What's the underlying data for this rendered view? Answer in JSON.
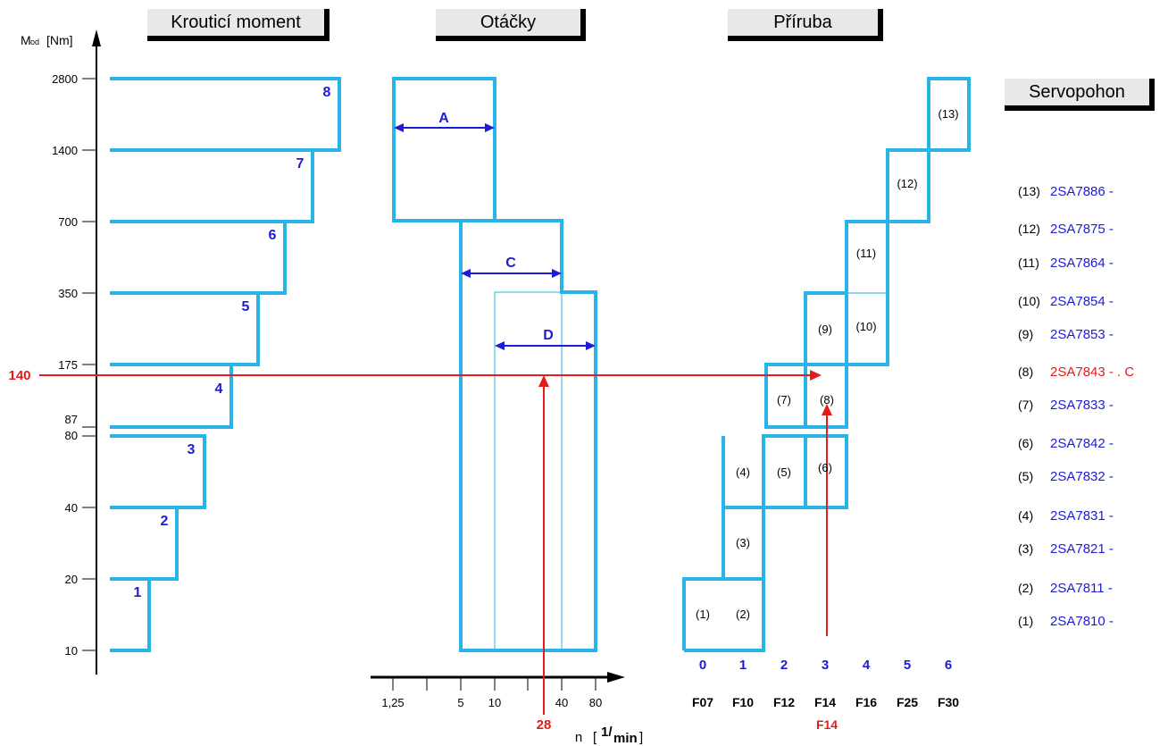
{
  "headers": {
    "torque": "Krouticí moment",
    "speed": "Otáčky",
    "flange": "Příruba",
    "servo": "Servopohon"
  },
  "axis": {
    "y_label": "M",
    "y_sub": "od",
    "y_unit": "[Nm]",
    "y_ticks": [
      "10",
      "20",
      "40",
      "80",
      "87",
      "175",
      "350",
      "700",
      "1400",
      "2800"
    ],
    "x_label": "n",
    "x_unit_num": "1",
    "x_unit_den": "min",
    "x_ticks": [
      "1,25",
      "5",
      "10",
      "40",
      "80"
    ]
  },
  "torque_steps": [
    "1",
    "2",
    "3",
    "4",
    "5",
    "6",
    "7",
    "8"
  ],
  "speed_regions": [
    "A",
    "C",
    "D"
  ],
  "flange_cells": [
    "(1)",
    "(2)",
    "(3)",
    "(4)",
    "(5)",
    "(6)",
    "(7)",
    "(8)",
    "(9)",
    "(10)",
    "(11)",
    "(12)",
    "(13)"
  ],
  "flange_sizes": [
    "0",
    "1",
    "2",
    "3",
    "4",
    "5",
    "6"
  ],
  "flange_codes": [
    "F07",
    "F10",
    "F12",
    "F14",
    "F16",
    "F25",
    "F30"
  ],
  "example": {
    "torque": "140",
    "speed": "28",
    "flange": "F14"
  },
  "servo_list": [
    {
      "num": "(13)",
      "code": "2SA7886 -"
    },
    {
      "num": "(12)",
      "code": "2SA7875 -"
    },
    {
      "num": "(11)",
      "code": "2SA7864 -"
    },
    {
      "num": "(10)",
      "code": "2SA7854 -"
    },
    {
      "num": "(9)",
      "code": "2SA7853 -"
    },
    {
      "num": "(8)",
      "code": "2SA7843 - . C"
    },
    {
      "num": "(7)",
      "code": "2SA7833 -"
    },
    {
      "num": "(6)",
      "code": "2SA7842 -"
    },
    {
      "num": "(5)",
      "code": "2SA7832 -"
    },
    {
      "num": "(4)",
      "code": "2SA7831 -"
    },
    {
      "num": "(3)",
      "code": "2SA7821 -"
    },
    {
      "num": "(2)",
      "code": "2SA7811 -"
    },
    {
      "num": "(1)",
      "code": "2SA7810 -"
    }
  ],
  "colors": {
    "box": "#29b3e8",
    "label": "#1c1cd6",
    "highlight": "#e41b1b",
    "axis": "#000000"
  }
}
